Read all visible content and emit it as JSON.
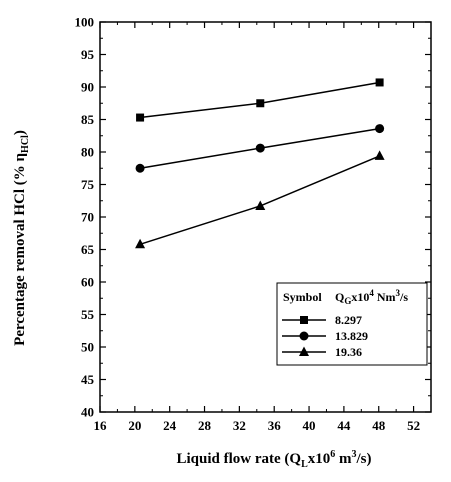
{
  "chart_data": {
    "type": "line",
    "xlabel": {
      "main": "Liquid flow rate (Q",
      "sub": "L",
      "mid": "x10",
      "sup": "6",
      "unit": " m",
      "unit_sup": "3",
      "tail": "/s)"
    },
    "ylabel": {
      "main": "Percentage removal HCl (% η",
      "sub": "HCl",
      "tail": ")"
    },
    "xlim": [
      16,
      54
    ],
    "ylim": [
      40,
      100
    ],
    "xticks": [
      16,
      20,
      24,
      28,
      32,
      36,
      40,
      44,
      48,
      52
    ],
    "yticks": [
      40,
      45,
      50,
      55,
      60,
      65,
      70,
      75,
      80,
      85,
      90,
      95,
      100
    ],
    "grid": false,
    "legend": {
      "position": "bottom-right",
      "symbol_header": "Symbol",
      "value_header": {
        "main": "Q",
        "sub": "G",
        "mid": "x10",
        "sup": "4",
        "unit": " Nm",
        "unit_sup": "3",
        "tail": "/s"
      }
    },
    "series": [
      {
        "name": "8.297",
        "marker": "square",
        "x": [
          20.6,
          34.4,
          48.1
        ],
        "y": [
          85.3,
          87.5,
          90.7
        ]
      },
      {
        "name": "13.829",
        "marker": "circle",
        "x": [
          20.6,
          34.4,
          48.1
        ],
        "y": [
          77.5,
          80.6,
          83.6
        ]
      },
      {
        "name": "19.36",
        "marker": "triangle",
        "x": [
          20.6,
          34.4,
          48.1
        ],
        "y": [
          65.8,
          71.7,
          79.4
        ]
      }
    ]
  }
}
